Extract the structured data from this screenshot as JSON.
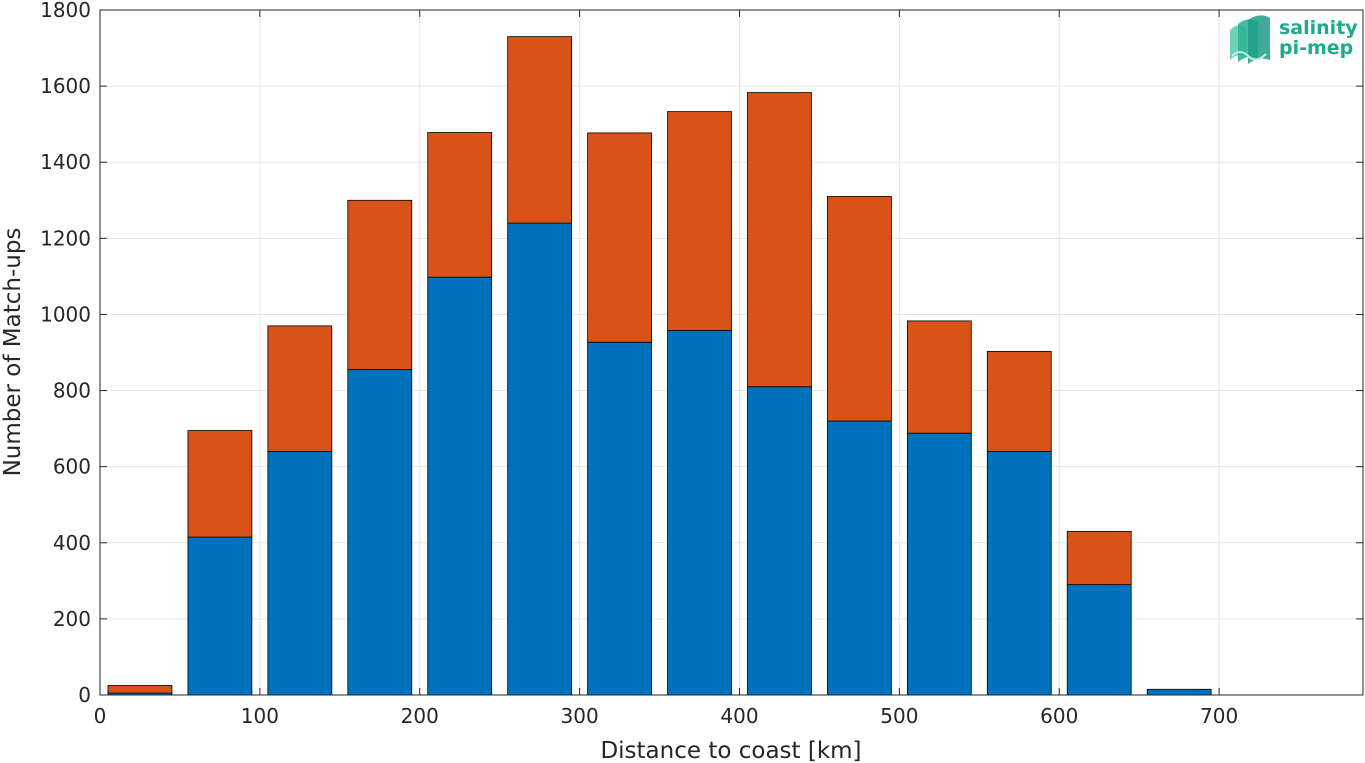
{
  "chart_data": {
    "type": "bar",
    "stacked": true,
    "xlabel": "Distance to coast [km]",
    "ylabel": "Number of Match-ups",
    "xlim": [
      0,
      790
    ],
    "ylim": [
      0,
      1800
    ],
    "xticks": [
      0,
      100,
      200,
      300,
      400,
      500,
      600,
      700
    ],
    "yticks": [
      0,
      200,
      400,
      600,
      800,
      1000,
      1200,
      1400,
      1600,
      1800
    ],
    "grid": true,
    "bin_width": 50,
    "bar_width": 40,
    "x": [
      25,
      75,
      125,
      175,
      225,
      275,
      325,
      375,
      425,
      475,
      525,
      575,
      625,
      675,
      725
    ],
    "series": [
      {
        "color": "#0072bd",
        "values": [
          5,
          415,
          640,
          855,
          1098,
          1240,
          927,
          958,
          810,
          720,
          688,
          640,
          290,
          15,
          0
        ]
      },
      {
        "color": "#d95319",
        "values": [
          20,
          280,
          330,
          445,
          380,
          490,
          550,
          575,
          773,
          590,
          295,
          263,
          140,
          0,
          0
        ]
      }
    ]
  },
  "logo": {
    "line1": "salinity",
    "line2": "pi-mep",
    "color": "#1faa8e"
  }
}
